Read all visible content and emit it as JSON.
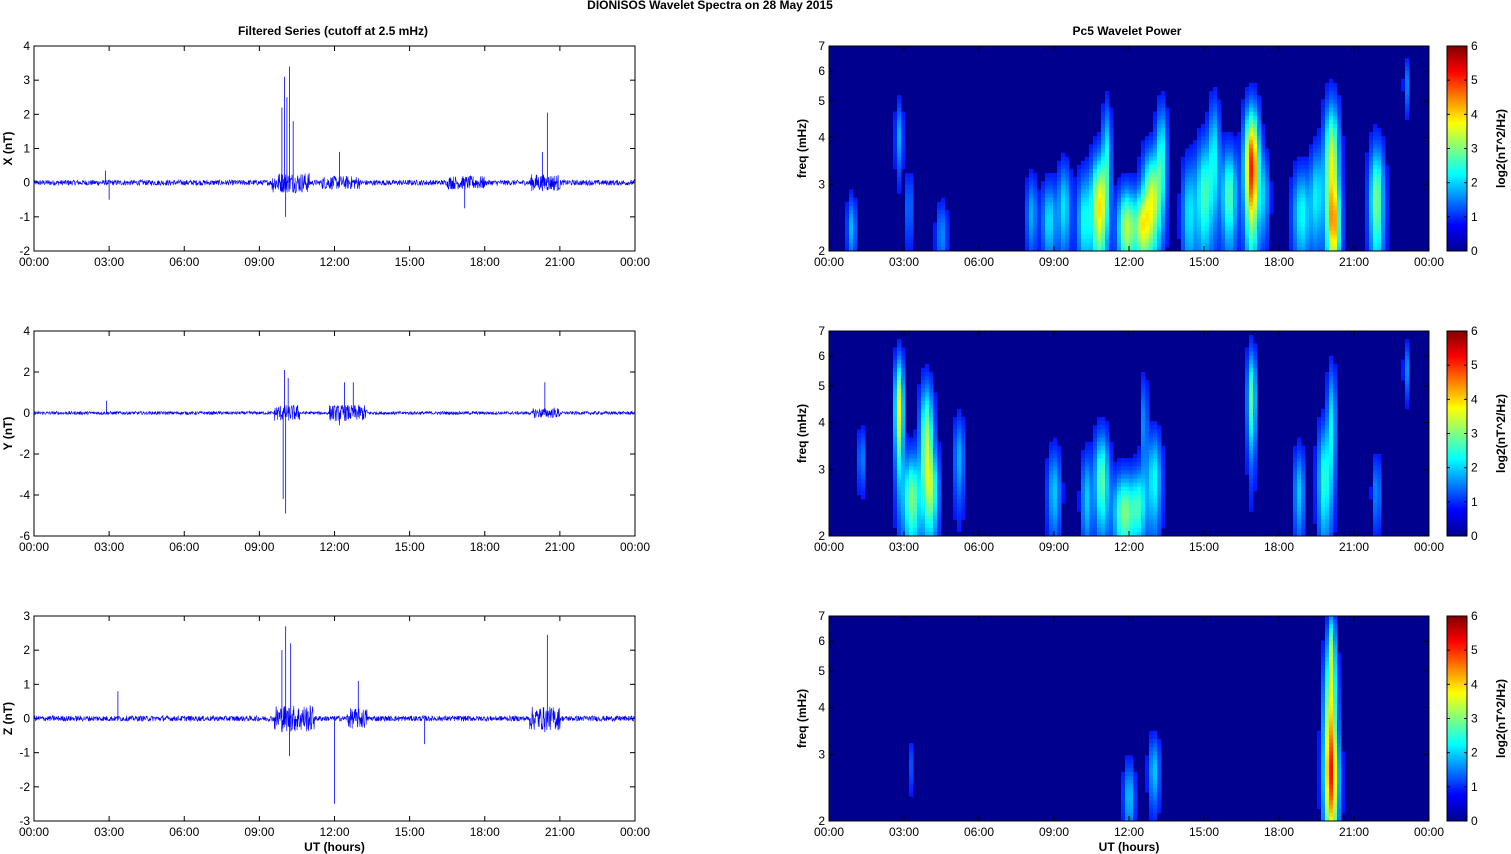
{
  "figure": {
    "title": "DIONISOS Wavelet Spectra on 28 May 2015",
    "left_title": "Filtered Series (cutoff at 2.5 mHz)",
    "right_title": "Pc5 Wavelet Power",
    "xlabel": "UT (hours)"
  },
  "colors": {
    "signal": "#0000ff",
    "background": "#00008f",
    "axis": "#000000"
  },
  "chart_data": [
    {
      "type": "line",
      "title": "Filtered Series (cutoff at 2.5 mHz)",
      "xlabel": "",
      "ylabel": "X (nT)",
      "xlim": [
        0,
        24
      ],
      "ylim": [
        -2,
        4
      ],
      "xticks": [
        "00:00",
        "03:00",
        "06:00",
        "09:00",
        "12:00",
        "15:00",
        "18:00",
        "21:00",
        "00:00"
      ],
      "yticks": [
        "-2",
        "-1",
        "0",
        "1",
        "2",
        "3",
        "4"
      ],
      "baseline_noise": 0.08,
      "bursts": [
        {
          "x": 2.85,
          "amplitude": 0.35
        },
        {
          "x": 3.0,
          "amplitude": -0.5
        },
        {
          "x": 9.9,
          "amplitude": 2.2
        },
        {
          "x": 10.0,
          "amplitude": 3.1
        },
        {
          "x": 10.1,
          "amplitude": 2.5
        },
        {
          "x": 10.2,
          "amplitude": 3.4
        },
        {
          "x": 10.35,
          "amplitude": 1.8
        },
        {
          "x": 10.05,
          "amplitude": -1.0
        },
        {
          "x": 12.2,
          "amplitude": 0.9
        },
        {
          "x": 17.2,
          "amplitude": -0.75
        },
        {
          "x": 20.5,
          "amplitude": 2.05
        },
        {
          "x": 20.3,
          "amplitude": 0.9
        }
      ],
      "active_intervals": [
        [
          9.5,
          11.0,
          0.3
        ],
        [
          11.5,
          13.0,
          0.2
        ],
        [
          16.5,
          18.0,
          0.2
        ],
        [
          19.8,
          21.0,
          0.25
        ]
      ]
    },
    {
      "type": "line",
      "xlabel": "",
      "ylabel": "Y (nT)",
      "xlim": [
        0,
        24
      ],
      "ylim": [
        -6,
        4
      ],
      "xticks": [
        "00:00",
        "03:00",
        "06:00",
        "09:00",
        "12:00",
        "15:00",
        "18:00",
        "21:00",
        "00:00"
      ],
      "yticks": [
        "-6",
        "-4",
        "-2",
        "0",
        "2",
        "4"
      ],
      "baseline_noise": 0.08,
      "bursts": [
        {
          "x": 2.9,
          "amplitude": 0.6
        },
        {
          "x": 9.95,
          "amplitude": -4.2
        },
        {
          "x": 10.05,
          "amplitude": -4.9
        },
        {
          "x": 10.0,
          "amplitude": 2.1
        },
        {
          "x": 10.15,
          "amplitude": 1.7
        },
        {
          "x": 12.4,
          "amplitude": 1.5
        },
        {
          "x": 12.75,
          "amplitude": 1.5
        },
        {
          "x": 12.2,
          "amplitude": -0.6
        },
        {
          "x": 20.4,
          "amplitude": 1.5
        }
      ],
      "active_intervals": [
        [
          9.6,
          10.6,
          0.4
        ],
        [
          11.8,
          13.3,
          0.4
        ],
        [
          19.9,
          21.0,
          0.25
        ]
      ]
    },
    {
      "type": "line",
      "xlabel": "UT (hours)",
      "ylabel": "Z (nT)",
      "xlim": [
        0,
        24
      ],
      "ylim": [
        -3,
        3
      ],
      "xticks": [
        "00:00",
        "03:00",
        "06:00",
        "09:00",
        "12:00",
        "15:00",
        "18:00",
        "21:00",
        "00:00"
      ],
      "yticks": [
        "-3",
        "-2",
        "-1",
        "0",
        "1",
        "2",
        "3"
      ],
      "baseline_noise": 0.08,
      "bursts": [
        {
          "x": 3.35,
          "amplitude": 0.8
        },
        {
          "x": 9.9,
          "amplitude": 2.0
        },
        {
          "x": 10.05,
          "amplitude": 2.7
        },
        {
          "x": 10.25,
          "amplitude": 2.2
        },
        {
          "x": 10.2,
          "amplitude": -1.1
        },
        {
          "x": 12.95,
          "amplitude": 1.1
        },
        {
          "x": 12.0,
          "amplitude": -2.5
        },
        {
          "x": 15.6,
          "amplitude": -0.75
        },
        {
          "x": 20.5,
          "amplitude": 2.45
        },
        {
          "x": 20.4,
          "amplitude": -0.4
        }
      ],
      "active_intervals": [
        [
          9.6,
          11.2,
          0.4
        ],
        [
          12.5,
          13.3,
          0.3
        ],
        [
          19.8,
          21.0,
          0.35
        ]
      ]
    },
    {
      "type": "heatmap",
      "title": "Pc5 Wavelet Power",
      "ylabel": "freq (mHz)",
      "colorbar_label": "log2(nT^2/Hz)",
      "clim": [
        0,
        6
      ],
      "xlim": [
        0,
        24
      ],
      "ylim": [
        2,
        7
      ],
      "yscale": "log",
      "xticks": [
        "00:00",
        "03:00",
        "06:00",
        "09:00",
        "12:00",
        "15:00",
        "18:00",
        "21:00",
        "00:00"
      ],
      "yticks": [
        "2",
        "3",
        "4",
        "5",
        "6",
        "7"
      ],
      "cticks": [
        "0",
        "1",
        "2",
        "3",
        "4",
        "5",
        "6"
      ],
      "blobs": [
        {
          "t": 0.9,
          "f": 2.3,
          "w": 0.12,
          "h": 0.3,
          "v": 1.3
        },
        {
          "t": 2.8,
          "f": 4.0,
          "w": 0.1,
          "h": 0.6,
          "v": 1.2
        },
        {
          "t": 3.2,
          "f": 2.6,
          "w": 0.1,
          "h": 0.4,
          "v": 0.9
        },
        {
          "t": 4.5,
          "f": 2.2,
          "w": 0.15,
          "h": 0.3,
          "v": 1.0
        },
        {
          "t": 8.1,
          "f": 2.5,
          "w": 0.15,
          "h": 0.4,
          "v": 1.2
        },
        {
          "t": 8.8,
          "f": 2.4,
          "w": 0.2,
          "h": 0.4,
          "v": 1.6
        },
        {
          "t": 9.4,
          "f": 2.6,
          "w": 0.18,
          "h": 0.5,
          "v": 1.6
        },
        {
          "t": 10.2,
          "f": 2.4,
          "w": 0.2,
          "h": 0.5,
          "v": 1.8
        },
        {
          "t": 10.8,
          "f": 2.6,
          "w": 0.22,
          "h": 0.6,
          "v": 3.6
        },
        {
          "t": 11.1,
          "f": 3.6,
          "w": 0.12,
          "h": 0.8,
          "v": 1.6
        },
        {
          "t": 11.9,
          "f": 2.3,
          "w": 0.25,
          "h": 0.4,
          "v": 3.0
        },
        {
          "t": 12.5,
          "f": 2.3,
          "w": 0.2,
          "h": 0.35,
          "v": 2.6
        },
        {
          "t": 12.9,
          "f": 2.7,
          "w": 0.25,
          "h": 0.6,
          "v": 3.2
        },
        {
          "t": 13.3,
          "f": 3.6,
          "w": 0.15,
          "h": 0.8,
          "v": 1.8
        },
        {
          "t": 14.4,
          "f": 2.5,
          "w": 0.2,
          "h": 0.6,
          "v": 1.6
        },
        {
          "t": 15.0,
          "f": 2.8,
          "w": 0.22,
          "h": 0.7,
          "v": 2.2
        },
        {
          "t": 15.4,
          "f": 3.6,
          "w": 0.15,
          "h": 0.9,
          "v": 1.6
        },
        {
          "t": 16.0,
          "f": 2.8,
          "w": 0.22,
          "h": 0.6,
          "v": 2.3
        },
        {
          "t": 16.9,
          "f": 3.3,
          "w": 0.2,
          "h": 0.9,
          "v": 5.0
        },
        {
          "t": 17.4,
          "f": 2.8,
          "w": 0.15,
          "h": 0.5,
          "v": 1.2
        },
        {
          "t": 18.9,
          "f": 2.5,
          "w": 0.25,
          "h": 0.5,
          "v": 1.8
        },
        {
          "t": 19.5,
          "f": 2.8,
          "w": 0.18,
          "h": 0.6,
          "v": 1.6
        },
        {
          "t": 20.1,
          "f": 3.3,
          "w": 0.2,
          "h": 1.0,
          "v": 3.4
        },
        {
          "t": 20.2,
          "f": 2.3,
          "w": 0.18,
          "h": 0.4,
          "v": 2.4
        },
        {
          "t": 21.9,
          "f": 2.7,
          "w": 0.2,
          "h": 0.7,
          "v": 2.6
        },
        {
          "t": 23.1,
          "f": 5.5,
          "w": 0.08,
          "h": 0.6,
          "v": 0.9
        }
      ]
    },
    {
      "type": "heatmap",
      "ylabel": "freq (mHz)",
      "colorbar_label": "log2(nT^2/Hz)",
      "clim": [
        0,
        6
      ],
      "xlim": [
        0,
        24
      ],
      "ylim": [
        2,
        7
      ],
      "yscale": "log",
      "xticks": [
        "00:00",
        "03:00",
        "06:00",
        "09:00",
        "12:00",
        "15:00",
        "18:00",
        "21:00",
        "00:00"
      ],
      "yticks": [
        "2",
        "3",
        "4",
        "5",
        "6",
        "7"
      ],
      "cticks": [
        "0",
        "1",
        "2",
        "3",
        "4",
        "5",
        "6"
      ],
      "blobs": [
        {
          "t": 1.3,
          "f": 3.2,
          "w": 0.1,
          "h": 0.4,
          "v": 1.0
        },
        {
          "t": 2.8,
          "f": 4.3,
          "w": 0.12,
          "h": 1.0,
          "v": 3.4
        },
        {
          "t": 3.3,
          "f": 2.5,
          "w": 0.25,
          "h": 0.5,
          "v": 2.6
        },
        {
          "t": 3.9,
          "f": 3.6,
          "w": 0.18,
          "h": 0.9,
          "v": 2.8
        },
        {
          "t": 4.1,
          "f": 2.6,
          "w": 0.2,
          "h": 0.5,
          "v": 2.0
        },
        {
          "t": 5.2,
          "f": 3.2,
          "w": 0.15,
          "h": 0.6,
          "v": 1.2
        },
        {
          "t": 9.0,
          "f": 2.6,
          "w": 0.18,
          "h": 0.5,
          "v": 1.4
        },
        {
          "t": 10.3,
          "f": 2.5,
          "w": 0.15,
          "h": 0.5,
          "v": 1.4
        },
        {
          "t": 10.9,
          "f": 2.8,
          "w": 0.2,
          "h": 0.6,
          "v": 2.4
        },
        {
          "t": 11.8,
          "f": 2.3,
          "w": 0.3,
          "h": 0.4,
          "v": 2.6
        },
        {
          "t": 12.4,
          "f": 2.4,
          "w": 0.2,
          "h": 0.4,
          "v": 1.8
        },
        {
          "t": 13.0,
          "f": 2.8,
          "w": 0.2,
          "h": 0.6,
          "v": 1.8
        },
        {
          "t": 12.6,
          "f": 4.0,
          "w": 0.1,
          "h": 0.8,
          "v": 1.0
        },
        {
          "t": 16.9,
          "f": 4.6,
          "w": 0.12,
          "h": 1.0,
          "v": 2.4
        },
        {
          "t": 18.8,
          "f": 2.6,
          "w": 0.15,
          "h": 0.5,
          "v": 1.4
        },
        {
          "t": 19.8,
          "f": 2.8,
          "w": 0.18,
          "h": 0.7,
          "v": 2.0
        },
        {
          "t": 20.1,
          "f": 4.0,
          "w": 0.12,
          "h": 1.0,
          "v": 1.6
        },
        {
          "t": 21.9,
          "f": 2.6,
          "w": 0.12,
          "h": 0.4,
          "v": 1.0
        },
        {
          "t": 23.1,
          "f": 5.5,
          "w": 0.08,
          "h": 0.6,
          "v": 1.0
        }
      ]
    },
    {
      "type": "heatmap",
      "xlabel": "UT (hours)",
      "ylabel": "freq (mHz)",
      "colorbar_label": "log2(nT^2/Hz)",
      "clim": [
        0,
        6
      ],
      "xlim": [
        0,
        24
      ],
      "ylim": [
        2,
        7
      ],
      "yscale": "log",
      "xticks": [
        "00:00",
        "03:00",
        "06:00",
        "09:00",
        "12:00",
        "15:00",
        "18:00",
        "21:00",
        "00:00"
      ],
      "yticks": [
        "2",
        "3",
        "4",
        "5",
        "6",
        "7"
      ],
      "cticks": [
        "0",
        "1",
        "2",
        "3",
        "4",
        "5",
        "6"
      ],
      "blobs": [
        {
          "t": 3.3,
          "f": 2.8,
          "w": 0.06,
          "h": 0.3,
          "v": 0.6
        },
        {
          "t": 12.0,
          "f": 2.3,
          "w": 0.15,
          "h": 0.35,
          "v": 1.4
        },
        {
          "t": 13.0,
          "f": 2.7,
          "w": 0.15,
          "h": 0.4,
          "v": 1.4
        },
        {
          "t": 20.05,
          "f": 3.6,
          "w": 0.18,
          "h": 1.3,
          "v": 3.4
        },
        {
          "t": 20.1,
          "f": 2.5,
          "w": 0.2,
          "h": 0.6,
          "v": 2.6
        },
        {
          "t": 20.1,
          "f": 5.8,
          "w": 0.1,
          "h": 0.9,
          "v": 2.0
        }
      ]
    }
  ]
}
